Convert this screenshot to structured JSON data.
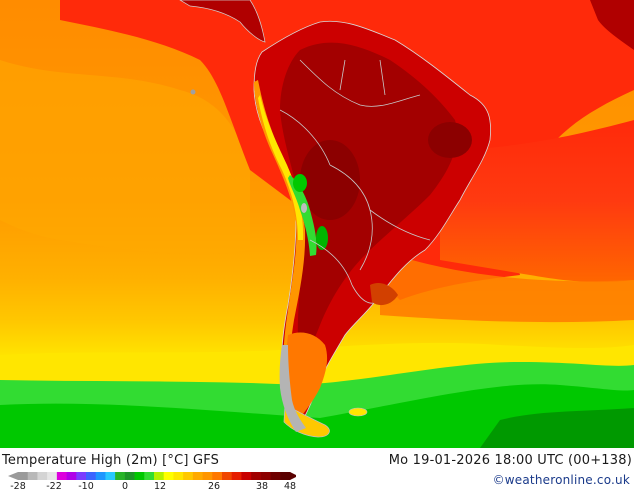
{
  "map": {
    "title": "Temperature High (2m) [°C] GFS",
    "datetime": "Mo 19-01-2026 18:00 UTC (00+138)",
    "credit": "©weatheronline.co.uk",
    "region": "South America",
    "legend": {
      "tick_labels": [
        "-28",
        "-22",
        "-10",
        "0",
        "12",
        "26",
        "38",
        "48"
      ],
      "colors": [
        "#9a9a9a",
        "#b8b8b8",
        "#d4d4d4",
        "#e6e6e6",
        "#dd00dd",
        "#b000e8",
        "#7a3cff",
        "#3c64ff",
        "#1e96ff",
        "#28c8ff",
        "#28b428",
        "#1e9628",
        "#00c800",
        "#32dc32",
        "#b4f000",
        "#ffff00",
        "#ffe600",
        "#ffc800",
        "#ffaa00",
        "#ff9600",
        "#ff7800",
        "#f04600",
        "#e61e00",
        "#c80000",
        "#a00000",
        "#8c0000",
        "#6e0000",
        "#5a0000"
      ]
    },
    "field_colors": {
      "ocean_warm": "#ff9900",
      "ocean_hot": "#ff2a0a",
      "land_hot": "#cc0000",
      "land_hottest": "#a30000",
      "cool_yellow": "#ffe600",
      "cool_green": "#00cc00",
      "cold_green": "#009900",
      "andes_grey": "#bdbdbd",
      "borders": "#c8c8c8"
    }
  }
}
